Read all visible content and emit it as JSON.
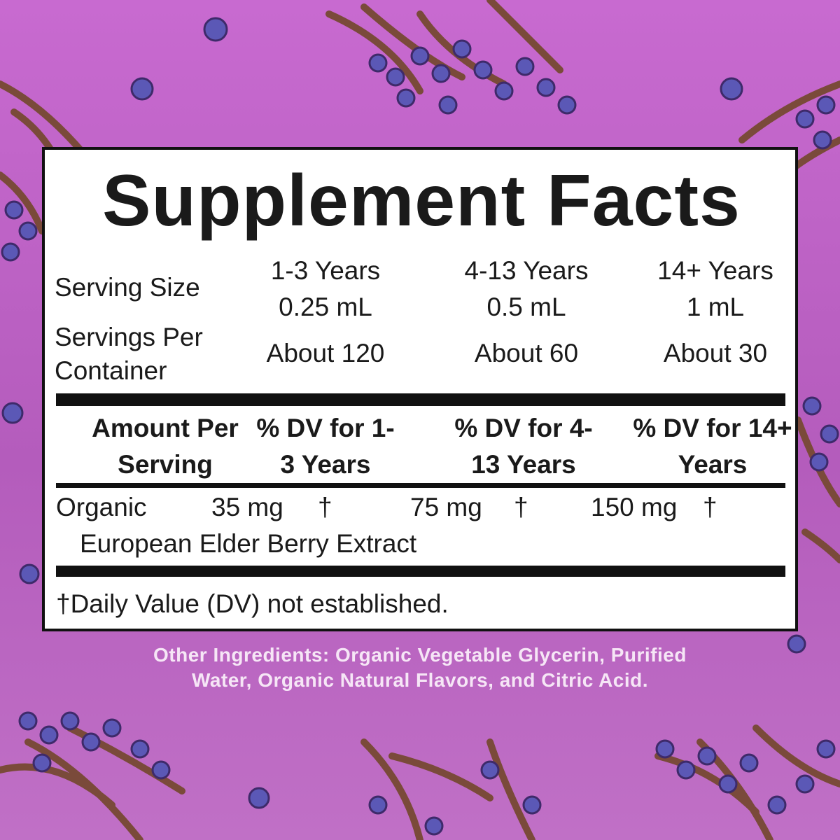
{
  "title": "Supplement Facts",
  "serving": {
    "size_label": "Serving Size",
    "servings_label": "Servings Per Container",
    "columns": [
      {
        "age": "1-3 Years",
        "size": "0.25 mL",
        "servings": "About 120"
      },
      {
        "age": "4-13 Years",
        "size": "0.5 mL",
        "servings": "About 60"
      },
      {
        "age": "14+ Years",
        "size": "1 mL",
        "servings": "About 30"
      }
    ]
  },
  "table": {
    "header": [
      "Amount Per Serving",
      "% DV for 1-3 Years",
      "% DV for 4-13 Years",
      "% DV for 14+ Years"
    ],
    "rows": [
      {
        "name_line1": "Organic",
        "name_line2": "European Elder Berry Extract",
        "amounts": [
          "35 mg",
          "75 mg",
          "150 mg"
        ],
        "dv": [
          "†",
          "†",
          "†"
        ]
      }
    ]
  },
  "footnote": "†Daily Value (DV) not established.",
  "other_ingredients": [
    "Other Ingredients:  Organic Vegetable Glycerin, Purified",
    "Water, Organic Natural Flavors, and Citric Acid."
  ]
}
